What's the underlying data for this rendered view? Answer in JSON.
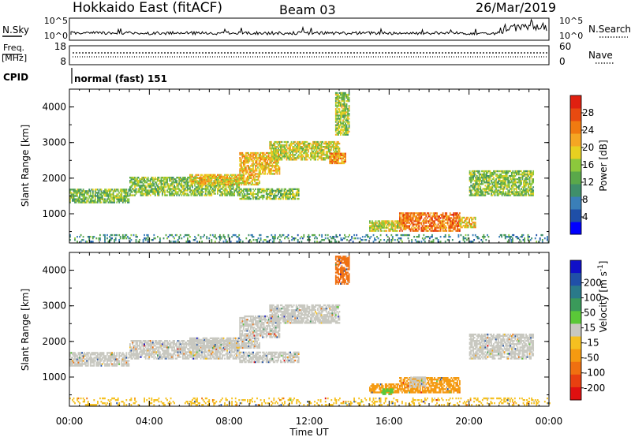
{
  "header": {
    "station": "Hokkaido East (fitACF)",
    "beam": "Beam 03",
    "date": "26/Mar/2019"
  },
  "aux_panels": {
    "nsky_label": "N.Sky",
    "nsearch_label": "N.Search",
    "noise_ticks": [
      "10^5",
      "10^0"
    ],
    "freq_label_line1": "Freq.",
    "freq_label_line2": "[MHz]",
    "freq_ticks": [
      "18",
      "8"
    ],
    "nave_label": "Nave",
    "nave_ticks": [
      "60",
      "0"
    ],
    "cpid_label": "CPID",
    "cpid_value": "normal (fast) 151"
  },
  "chart_data": [
    {
      "type": "heatmap",
      "name": "power",
      "title": "",
      "ylabel": "Slant Range [km]",
      "xlabel": "",
      "xlim_hours": [
        0,
        24
      ],
      "ylim": [
        180,
        4500
      ],
      "yticks": [
        "1000",
        "2000",
        "3000",
        "4000"
      ],
      "colorbar": {
        "label": "Power [dB]",
        "range": [
          0,
          32
        ],
        "tick_labels": [
          "4",
          "8",
          "12",
          "16",
          "20",
          "24",
          "28"
        ],
        "colors": [
          "#0000ff",
          "#1f4fa8",
          "#3a7fb8",
          "#3f8f6a",
          "#5aa84a",
          "#8cc83c",
          "#e8d020",
          "#f5a623",
          "#f07a10",
          "#e84a10",
          "#e02010"
        ]
      },
      "regions": [
        {
          "t": [
            0.0,
            3.0
          ],
          "r": [
            1300,
            1700
          ],
          "level": 14
        },
        {
          "t": [
            3.0,
            8.5
          ],
          "r": [
            1500,
            2000
          ],
          "level": 15
        },
        {
          "t": [
            6.0,
            9.5
          ],
          "r": [
            1800,
            2100
          ],
          "level": 20
        },
        {
          "t": [
            8.5,
            10.5
          ],
          "r": [
            2100,
            2700
          ],
          "level": 21
        },
        {
          "t": [
            10.0,
            13.5
          ],
          "r": [
            2500,
            3000
          ],
          "level": 18
        },
        {
          "t": [
            13.0,
            13.8
          ],
          "r": [
            2400,
            2700
          ],
          "level": 23
        },
        {
          "t": [
            8.5,
            11.5
          ],
          "r": [
            1400,
            1700
          ],
          "level": 15
        },
        {
          "t": [
            13.3,
            14.0
          ],
          "r": [
            3200,
            4400
          ],
          "level": 16
        },
        {
          "t": [
            15.0,
            16.5
          ],
          "r": [
            500,
            800
          ],
          "level": 18
        },
        {
          "t": [
            16.5,
            19.5
          ],
          "r": [
            500,
            1000
          ],
          "level": 25
        },
        {
          "t": [
            19.5,
            20.3
          ],
          "r": [
            600,
            900
          ],
          "level": 20
        },
        {
          "t": [
            20.0,
            23.2
          ],
          "r": [
            1500,
            2200
          ],
          "level": 15
        },
        {
          "t": [
            0.0,
            24.0
          ],
          "r": [
            200,
            420
          ],
          "level": 10
        }
      ]
    },
    {
      "type": "heatmap",
      "name": "velocity",
      "title": "",
      "ylabel": "Slant Range [km]",
      "xlabel": "Time UT",
      "xlim_hours": [
        0,
        24
      ],
      "ylim": [
        180,
        4500
      ],
      "yticks": [
        "1000",
        "2000",
        "3000",
        "4000"
      ],
      "xticks": [
        "00:00",
        "04:00",
        "08:00",
        "12:00",
        "16:00",
        "20:00",
        "00:00"
      ],
      "colorbar": {
        "label": "Velocity [m s",
        "label_superscript": "-1",
        "label_close": "]",
        "tick_labels": [
          "200",
          "100",
          "50",
          "15",
          "-15",
          "-50",
          "-100",
          "-200"
        ],
        "colors": [
          "#1010c8",
          "#2050a8",
          "#2a7a8a",
          "#3a9a5a",
          "#5ac838",
          "#c8c8c0",
          "#f5c020",
          "#f59a10",
          "#f07010",
          "#e84010",
          "#e01010"
        ]
      },
      "regions": [
        {
          "t": [
            0.0,
            3.0
          ],
          "r": [
            1300,
            1700
          ],
          "v": 0
        },
        {
          "t": [
            3.0,
            8.5
          ],
          "r": [
            1500,
            2000
          ],
          "v": 0
        },
        {
          "t": [
            6.0,
            9.5
          ],
          "r": [
            1800,
            2100
          ],
          "v": 0
        },
        {
          "t": [
            8.5,
            10.5
          ],
          "r": [
            2100,
            2700
          ],
          "v": 0
        },
        {
          "t": [
            10.0,
            13.5
          ],
          "r": [
            2500,
            3000
          ],
          "v": 0
        },
        {
          "t": [
            8.5,
            11.5
          ],
          "r": [
            1400,
            1700
          ],
          "v": 0
        },
        {
          "t": [
            13.3,
            14.0
          ],
          "r": [
            3600,
            4400
          ],
          "v": -180
        },
        {
          "t": [
            15.0,
            16.5
          ],
          "r": [
            550,
            800
          ],
          "v": -60
        },
        {
          "t": [
            15.6,
            16.2
          ],
          "r": [
            500,
            650
          ],
          "v": 40
        },
        {
          "t": [
            16.5,
            19.5
          ],
          "r": [
            550,
            1000
          ],
          "v": -60
        },
        {
          "t": [
            17.0,
            17.8
          ],
          "r": [
            700,
            1000
          ],
          "v": 0
        },
        {
          "t": [
            20.0,
            23.2
          ],
          "r": [
            1500,
            2200
          ],
          "v": 0
        },
        {
          "t": [
            0.0,
            24.0
          ],
          "r": [
            200,
            420
          ],
          "v": -20
        }
      ]
    }
  ]
}
